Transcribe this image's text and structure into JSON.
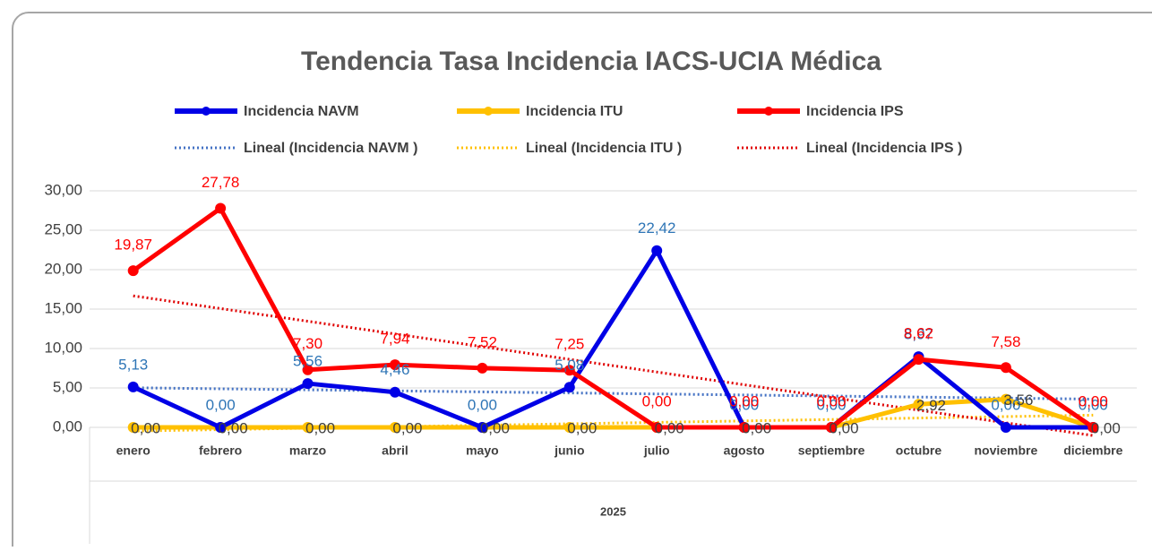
{
  "chart_data": {
    "type": "line",
    "title": "Tendencia Tasa Incidencia IACS-UCIA Médica",
    "categories": [
      "enero",
      "febrero",
      "marzo",
      "abril",
      "mayo",
      "junio",
      "julio",
      "agosto",
      "septiembre",
      "octubre",
      "noviembre",
      "diciembre"
    ],
    "x_group_label": "2025",
    "series": [
      {
        "name": "Incidencia NAVM",
        "color": "#0000e6",
        "label_color": "#2e75b6",
        "values": [
          5.13,
          0,
          5.56,
          4.46,
          0,
          5.08,
          22.42,
          0,
          0,
          8.97,
          0,
          0
        ],
        "value_labels": [
          "5,13",
          "0,00",
          "5,56",
          "4,46",
          "0,00",
          "5,08",
          "22,42",
          "0,00",
          "0,00",
          "8,97",
          "0,00",
          "0,00"
        ],
        "trendline": {
          "name": "Lineal (Incidencia NAVM )",
          "color": "#4472c4"
        }
      },
      {
        "name": "Incidencia ITU",
        "color": "#ffc000",
        "label_color": "#404040",
        "values": [
          0,
          0,
          0,
          0,
          0,
          0,
          0,
          0,
          0,
          2.92,
          3.56,
          0
        ],
        "value_labels": [
          "0,00",
          "0,00",
          "0,00",
          "0,00",
          "0,00",
          "0,00",
          "0,00",
          "0,00",
          "0,00",
          "2,92",
          "3,56",
          "0,00"
        ],
        "trendline": {
          "name": "Lineal (Incidencia ITU )",
          "color": "#ffc000"
        }
      },
      {
        "name": "Incidencia IPS",
        "color": "#ff0000",
        "label_color": "#ff0000",
        "values": [
          19.87,
          27.78,
          7.3,
          7.94,
          7.52,
          7.25,
          0,
          0,
          0,
          8.62,
          7.58,
          0
        ],
        "value_labels": [
          "19,87",
          "27,78",
          "7,30",
          "7,94",
          "7,52",
          "7,25",
          "0,00",
          "0,00",
          "0,00",
          "8,62",
          "7,58",
          "0,00"
        ],
        "trendline": {
          "name": "Lineal (Incidencia IPS )",
          "color": "#e00000"
        }
      }
    ],
    "ylim": [
      0,
      30
    ],
    "yticks": [
      {
        "value": 0,
        "label": "0,00"
      },
      {
        "value": 5,
        "label": "5,00"
      },
      {
        "value": 10,
        "label": "10,00"
      },
      {
        "value": 15,
        "label": "15,00"
      },
      {
        "value": 20,
        "label": "20,00"
      },
      {
        "value": 25,
        "label": "25,00"
      },
      {
        "value": 30,
        "label": "30,00"
      }
    ],
    "grid": true,
    "legend": "top"
  }
}
